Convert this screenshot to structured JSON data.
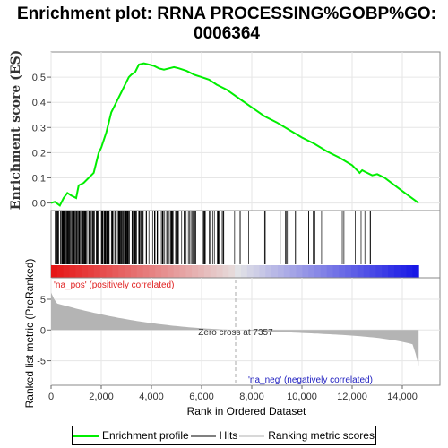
{
  "chart_data": {
    "type": "line",
    "title_lines": [
      "Enrichment plot: RRNA PROCESSING%GOBP%GO:",
      "0006364"
    ],
    "ylabel_top": "Enrichment score (ES)",
    "ylabel_bottom": "Ranked list metric (PreRanked)",
    "xlabel": "Rank in Ordered Dataset",
    "x_ticks": [
      0,
      2000,
      4000,
      6000,
      8000,
      10000,
      12000,
      14000
    ],
    "x_tick_labels": [
      "0",
      "2,000",
      "4,000",
      "6,000",
      "8,000",
      "10,000",
      "12,000",
      "14,000"
    ],
    "xlim": [
      0,
      15500
    ],
    "es_yticks": [
      0.0,
      0.1,
      0.2,
      0.3,
      0.4,
      0.5
    ],
    "es_ytick_labels": [
      "0.0",
      "0.1",
      "0.2",
      "0.3",
      "0.4",
      "0.5"
    ],
    "es_ylim": [
      -0.03,
      0.6
    ],
    "metric_yticks": [
      5,
      0,
      -5
    ],
    "metric_ytick_labels": [
      "5",
      "0",
      "-5"
    ],
    "metric_ylim": [
      -9,
      8.5
    ],
    "n_genes": 14650,
    "zero_cross": 7357,
    "zero_cross_label": "Zero cross at 7357",
    "pos_label": "'na_pos' (positively correlated)",
    "neg_label": "'na_neg' (negatively correlated)",
    "colors": {
      "es": "#00ee00",
      "hits": "#000000",
      "metric": "#b4b4b4",
      "pos": "#e02020",
      "neg": "#2020c0"
    },
    "series": [
      {
        "name": "Enrichment profile",
        "x": [
          0,
          150,
          350,
          500,
          650,
          800,
          1000,
          1100,
          1300,
          1500,
          1700,
          1800,
          1900,
          2000,
          2100,
          2200,
          2300,
          2400,
          2500,
          2600,
          2700,
          2800,
          2900,
          3000,
          3100,
          3200,
          3350,
          3500,
          3700,
          3900,
          4100,
          4300,
          4500,
          4700,
          4900,
          5100,
          5400,
          5700,
          6000,
          6300,
          6600,
          7000,
          7500,
          8000,
          8500,
          9000,
          9500,
          10000,
          10500,
          11000,
          11500,
          12000,
          12300,
          12400,
          12500,
          12600,
          12800,
          13000,
          13300,
          13700,
          14100,
          14650
        ],
        "y": [
          0.0,
          0.005,
          -0.01,
          0.02,
          0.04,
          0.03,
          0.02,
          0.07,
          0.08,
          0.1,
          0.12,
          0.16,
          0.2,
          0.22,
          0.25,
          0.28,
          0.32,
          0.36,
          0.38,
          0.4,
          0.42,
          0.44,
          0.46,
          0.48,
          0.5,
          0.51,
          0.52,
          0.55,
          0.555,
          0.55,
          0.545,
          0.535,
          0.53,
          0.535,
          0.54,
          0.535,
          0.525,
          0.51,
          0.5,
          0.49,
          0.47,
          0.45,
          0.415,
          0.38,
          0.345,
          0.32,
          0.29,
          0.26,
          0.235,
          0.205,
          0.18,
          0.15,
          0.12,
          0.13,
          0.125,
          0.12,
          0.11,
          0.115,
          0.1,
          0.07,
          0.04,
          0.0
        ]
      },
      {
        "name": "Hits"
      },
      {
        "name": "Ranking metric scores"
      }
    ]
  }
}
